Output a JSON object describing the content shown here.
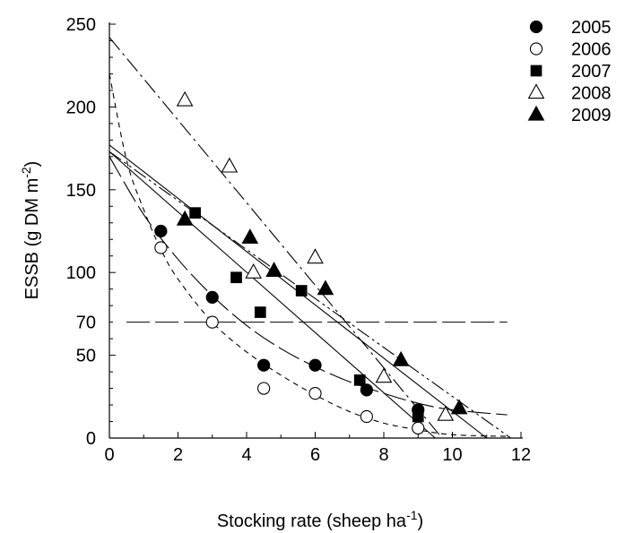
{
  "chart_data": {
    "type": "scatter",
    "title": "",
    "xlabel": {
      "text": "Stocking rate (sheep ha",
      "sup": "-1",
      "suffix": ")"
    },
    "ylabel": {
      "text": "ESSB (g DM m",
      "sup": "-2",
      "suffix": ")"
    },
    "xlim": [
      0,
      12
    ],
    "ylim": [
      0,
      250
    ],
    "x_ticks": [
      0,
      2,
      4,
      6,
      8,
      10,
      12
    ],
    "y_ticks": [
      0,
      50,
      70,
      100,
      150,
      200,
      250
    ],
    "grid": false,
    "legend_position": "top-right",
    "reference_line": {
      "y": 70,
      "x_range": [
        0.5,
        11.6
      ],
      "style": "long-dash"
    },
    "series": [
      {
        "name": "2005",
        "marker": "circle",
        "fill": "#000000",
        "points": [
          [
            1.5,
            125
          ],
          [
            3.0,
            85
          ],
          [
            4.5,
            44
          ],
          [
            6.0,
            44
          ],
          [
            7.5,
            29
          ],
          [
            9.0,
            17
          ]
        ],
        "fit": {
          "kind": "curve",
          "style": "long-dash",
          "points": [
            [
              0,
              170
            ],
            [
              1,
              135
            ],
            [
              2,
              108
            ],
            [
              3,
              86
            ],
            [
              4,
              68
            ],
            [
              5,
              54
            ],
            [
              6,
              43
            ],
            [
              7,
              34
            ],
            [
              8,
              27
            ],
            [
              9,
              21
            ],
            [
              10,
              17
            ],
            [
              11.6,
              14
            ]
          ]
        }
      },
      {
        "name": "2006",
        "marker": "circle",
        "fill": "none",
        "points": [
          [
            1.5,
            115
          ],
          [
            3.0,
            70
          ],
          [
            4.5,
            30
          ],
          [
            6.0,
            27
          ],
          [
            7.5,
            13
          ],
          [
            9.0,
            6
          ]
        ],
        "fit": {
          "kind": "curve",
          "style": "short-dash",
          "points": [
            [
              0,
              220
            ],
            [
              0.5,
              168
            ],
            [
              1,
              138
            ],
            [
              1.5,
              114
            ],
            [
              2,
              96
            ],
            [
              3,
              70
            ],
            [
              4,
              52
            ],
            [
              5,
              38
            ],
            [
              6,
              26
            ],
            [
              7,
              16
            ],
            [
              8,
              9
            ],
            [
              9,
              5
            ],
            [
              10,
              2
            ],
            [
              11.6,
              1
            ]
          ]
        }
      },
      {
        "name": "2007",
        "marker": "square",
        "fill": "#000000",
        "points": [
          [
            2.5,
            136
          ],
          [
            3.7,
            97
          ],
          [
            4.4,
            76
          ],
          [
            5.6,
            89
          ],
          [
            7.3,
            35
          ],
          [
            9.0,
            13
          ]
        ],
        "fit": {
          "kind": "line",
          "style": "solid",
          "points": [
            [
              0,
              173
            ],
            [
              9.5,
              0
            ]
          ]
        }
      },
      {
        "name": "2008",
        "marker": "triangle",
        "fill": "none",
        "points": [
          [
            2.2,
            204
          ],
          [
            3.5,
            164
          ],
          [
            4.2,
            100
          ],
          [
            6.0,
            109
          ],
          [
            8.0,
            37
          ],
          [
            9.8,
            14
          ]
        ],
        "fit": {
          "kind": "line",
          "style": "dash-dot",
          "points": [
            [
              0,
              242
            ],
            [
              9.7,
              0
            ]
          ]
        }
      },
      {
        "name": "2009",
        "marker": "triangle",
        "fill": "#000000",
        "points": [
          [
            2.2,
            132
          ],
          [
            4.1,
            121
          ],
          [
            4.8,
            101
          ],
          [
            6.3,
            90
          ],
          [
            8.5,
            47
          ],
          [
            10.2,
            18
          ]
        ],
        "fit": {
          "kind": "line",
          "style": "dash-dot-dot",
          "points": [
            [
              0,
              173
            ],
            [
              11.7,
              0
            ]
          ]
        }
      },
      {
        "name": "",
        "marker": "none",
        "points": [],
        "fit": {
          "kind": "line",
          "style": "solid",
          "points": [
            [
              0,
              177
            ],
            [
              11.0,
              0
            ]
          ]
        }
      }
    ]
  }
}
